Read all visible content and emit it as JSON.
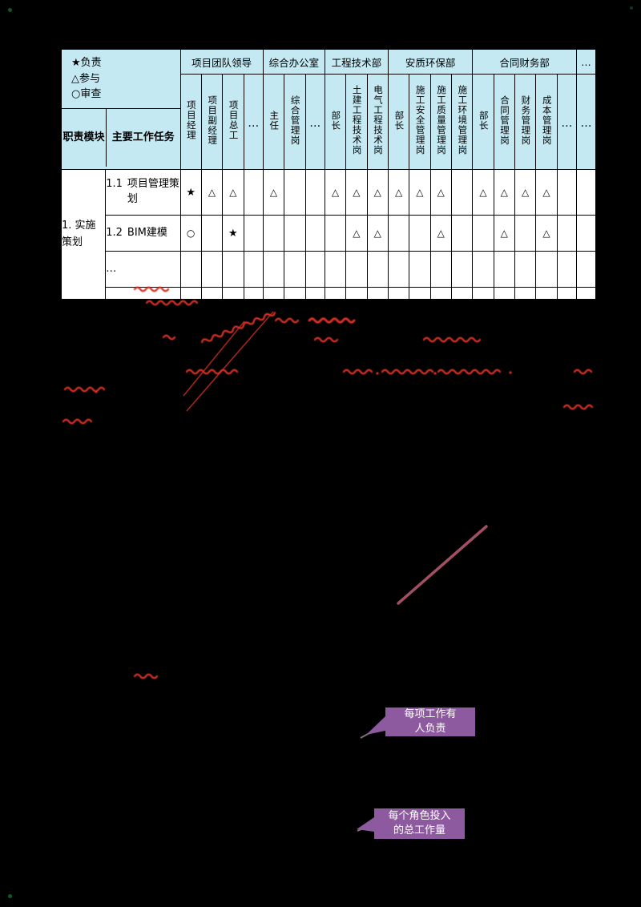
{
  "legend": {
    "items": [
      {
        "symbol": "★",
        "label": "负责"
      },
      {
        "symbol": "△",
        "label": "参与"
      },
      {
        "symbol": "○",
        "label": "审查"
      }
    ]
  },
  "table": {
    "header_left": {
      "module_col": "职责模块",
      "task_col": "主要工作任务"
    },
    "groups": [
      {
        "label": "项目团队领导",
        "cols": [
          "项目经理",
          "项目副经理",
          "项目总工",
          "…"
        ]
      },
      {
        "label": "综合办公室",
        "cols": [
          "主任",
          "综合管理岗",
          "…"
        ]
      },
      {
        "label": "工程技术部",
        "cols": [
          "部长",
          "土建工程技术岗",
          "电气工程技术岗"
        ]
      },
      {
        "label": "安质环保部",
        "cols": [
          "部长",
          "施工安全管理岗",
          "施工质量管理岗",
          "施工环境管理岗"
        ]
      },
      {
        "label": "合同财务部",
        "cols": [
          "部长",
          "合同管理岗",
          "财务管理岗",
          "成本管理岗",
          "…"
        ]
      },
      {
        "label": "…",
        "cols": [
          "…"
        ]
      }
    ],
    "module_label": "1. 实施策划",
    "rows": [
      {
        "num": "1.1",
        "task": "项目管理策划",
        "marks": [
          "★",
          "△",
          "△",
          "",
          "△",
          "",
          "",
          "△",
          "△",
          "△",
          "△",
          "△",
          "△",
          "",
          "△",
          "△",
          "△",
          "△",
          "",
          ""
        ]
      },
      {
        "num": "1.2",
        "task": "BIM建模",
        "marks": [
          "○",
          "",
          "★",
          "",
          "",
          "",
          "",
          "",
          "△",
          "△",
          "",
          "",
          "△",
          "",
          "",
          "△",
          "",
          "△",
          "",
          ""
        ]
      },
      {
        "num": "",
        "task": "…",
        "marks": [
          "",
          "",
          "",
          "",
          "",
          "",
          "",
          "",
          "",
          "",
          "",
          "",
          "",
          "",
          "",
          "",
          "",
          "",
          "",
          ""
        ]
      },
      {
        "num": "",
        "task": "",
        "marks": [
          "",
          "",
          "",
          "",
          "",
          "",
          "",
          "",
          "",
          "",
          "",
          "",
          "",
          "",
          "",
          "",
          "",
          "",
          "",
          ""
        ]
      }
    ]
  },
  "callouts": [
    {
      "line1": "每项工作有",
      "line2": "人负责"
    },
    {
      "line1": "每个角色投入",
      "line2": "的总工作量"
    }
  ],
  "colors": {
    "header_bg": "#c5e9f3",
    "callout_bg": "#8d5a9f",
    "annotation_red": "#d93025",
    "maroon_line": "#a34f63"
  }
}
